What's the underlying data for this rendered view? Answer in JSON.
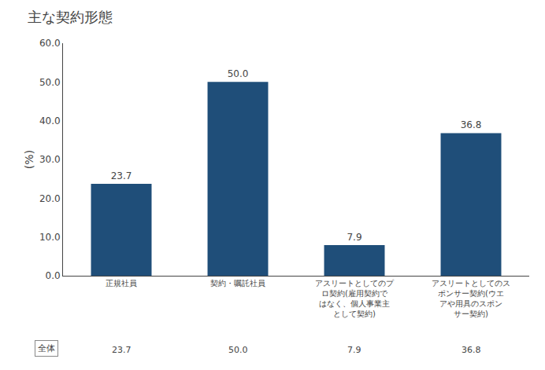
{
  "chart_data": {
    "type": "bar",
    "title": "主な契約形態",
    "ylabel": "(%)",
    "categories": [
      "正規社員",
      "契約・嘱託社員",
      "アスリートとしてのプ\nロ契約(雇用契約で\nはなく、個人事業主\nとして契約)",
      "アスリートとしてのス\nポンサー契約(ウエ\nアや用具のスポン\nサー契約)"
    ],
    "values": [
      23.7,
      50.0,
      7.9,
      36.8
    ],
    "value_labels": [
      "23.7",
      "50.0",
      "7.9",
      "36.8"
    ],
    "data_labels": true,
    "color": "#1f4e79",
    "ylim": [
      0,
      60
    ],
    "yticks": [
      {
        "value": 0,
        "label": "0.0"
      },
      {
        "value": 10,
        "label": "10.0"
      },
      {
        "value": 20,
        "label": "20.0"
      },
      {
        "value": 30,
        "label": "30.0"
      },
      {
        "value": 40,
        "label": "40.0"
      },
      {
        "value": 50,
        "label": "50.0"
      },
      {
        "value": 60,
        "label": "60.0"
      }
    ],
    "grid": false,
    "annotations": [
      "全体"
    ]
  }
}
